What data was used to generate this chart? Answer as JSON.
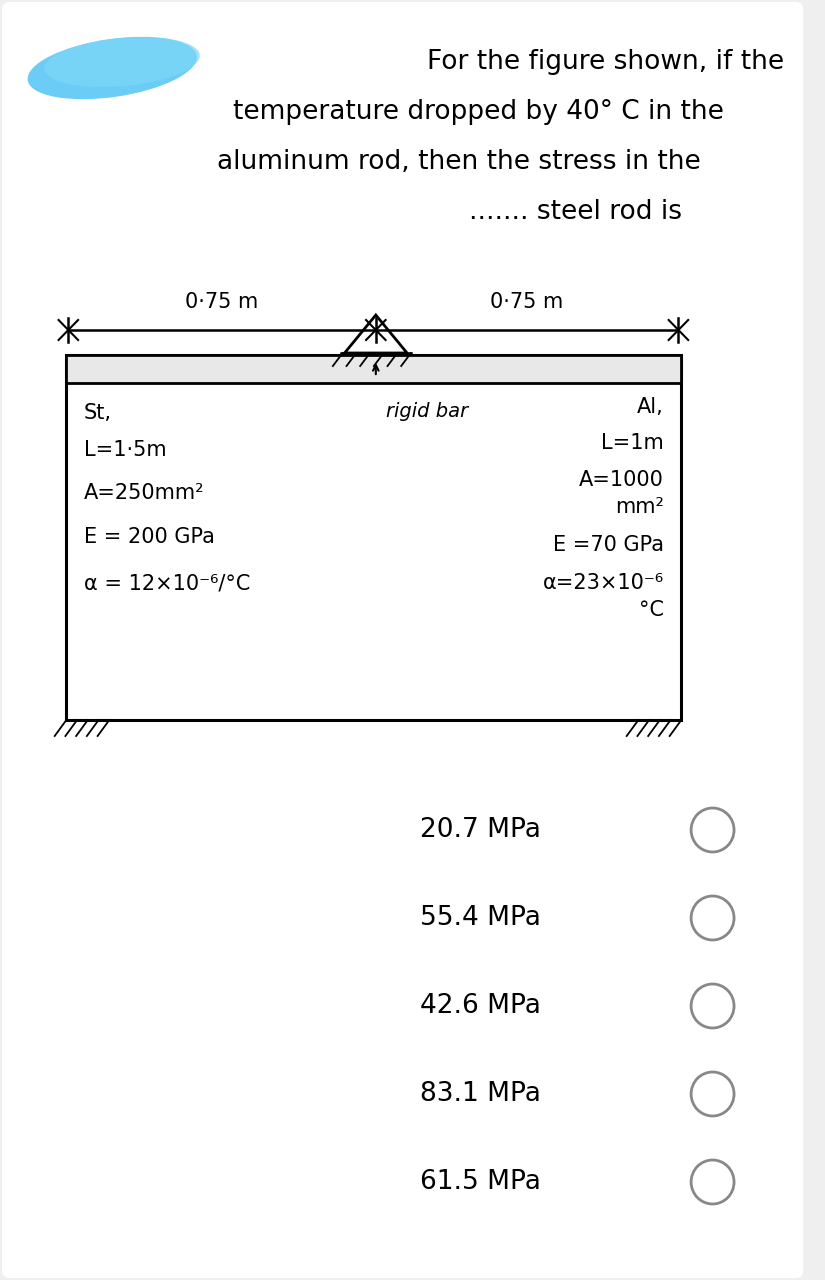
{
  "bg_color": "#efefef",
  "card_color": "#ffffff",
  "title_line1": "For the figure shown, if the",
  "title_line2": "temperature dropped by 40° C in the",
  "title_line3": "aluminum rod, then the stress in the",
  "title_line4": "....... steel rod is",
  "dim_left": "0·75 m",
  "dim_right": "0·75 m",
  "options": [
    "20.7 MPa",
    "55.4 MPa",
    "42.6 MPa",
    "83.1 MPa",
    "61.5 MPa"
  ],
  "blob_color": "#5bc8f5",
  "circle_color": "#888888"
}
